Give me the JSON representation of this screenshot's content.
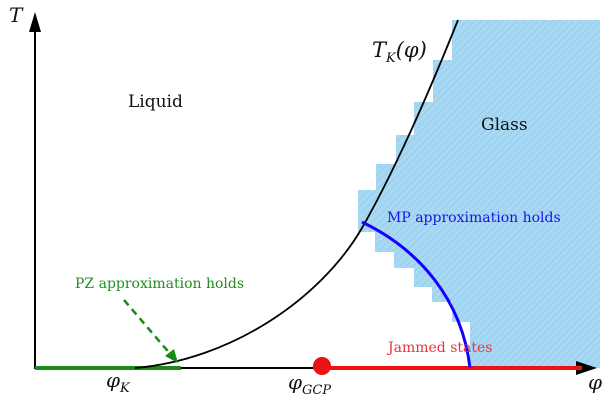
{
  "axes": {
    "y_label": "T",
    "x_label": "φ"
  },
  "regions": {
    "liquid": "Liquid",
    "glass": "Glass"
  },
  "curve_labels": {
    "tk_main": "T",
    "tk_sub": "K",
    "tk_arg": "(φ)"
  },
  "annotations": {
    "mp": "MP approximation holds",
    "pz": "PZ approximation holds",
    "jammed": "Jammed states"
  },
  "points": {
    "phi_k_main": "φ",
    "phi_k_sub": "K",
    "phi_gcp_main": "φ",
    "phi_gcp_sub": "GCP"
  },
  "colors": {
    "glass_fill": "#a9d8f3",
    "glass_hatch": "#7fc2ec",
    "mp_curve": "#1400ff",
    "pz_line": "#1a8a1a",
    "pz_text": "#1f8f1f",
    "jammed": "#ee1111",
    "mp_text": "#1a14e6",
    "jammed_text": "#e8343a"
  }
}
